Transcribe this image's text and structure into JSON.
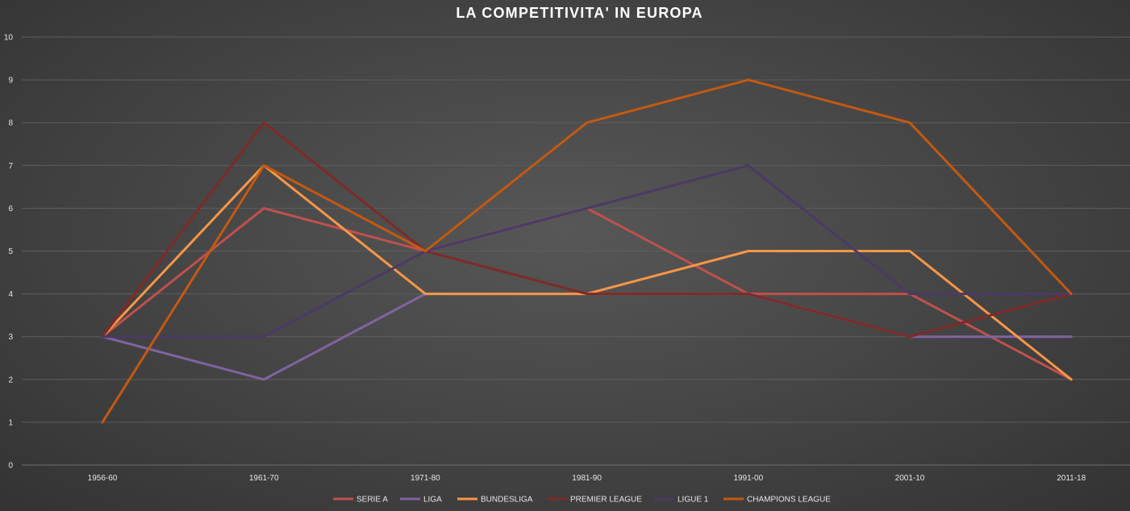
{
  "chart_data": {
    "type": "line",
    "title": "LA COMPETITIVITA' IN EUROPA",
    "xlabel": "",
    "ylabel": "",
    "ylim": [
      0,
      10
    ],
    "yticks": [
      0,
      1,
      2,
      3,
      4,
      5,
      6,
      7,
      8,
      9,
      10
    ],
    "grid": true,
    "legend_position": "bottom",
    "categories": [
      "1956-60",
      "1961-70",
      "1971-80",
      "1981-90",
      "1991-00",
      "2001-10",
      "2011-18"
    ],
    "series": [
      {
        "name": "SERIE A",
        "color": "#c0504d",
        "values": [
          3,
          6,
          5,
          6,
          4,
          4,
          2
        ]
      },
      {
        "name": "LIGA",
        "color": "#8064a2",
        "values": [
          3,
          2,
          4,
          4,
          4,
          3,
          3
        ]
      },
      {
        "name": "BUNDESLIGA",
        "color": "#f79646",
        "values": [
          3,
          7,
          4,
          4,
          5,
          5,
          2
        ]
      },
      {
        "name": "PREMIER LEAGUE",
        "color": "#7f2a28",
        "values": [
          3,
          8,
          5,
          4,
          4,
          3,
          4
        ]
      },
      {
        "name": "LIGUE 1",
        "color": "#4b3a66",
        "values": [
          3,
          3,
          5,
          6,
          7,
          4,
          4
        ]
      },
      {
        "name": "CHAMPIONS LEAGUE",
        "color": "#c5590f",
        "values": [
          1,
          7,
          5,
          8,
          9,
          8,
          4
        ]
      }
    ]
  }
}
